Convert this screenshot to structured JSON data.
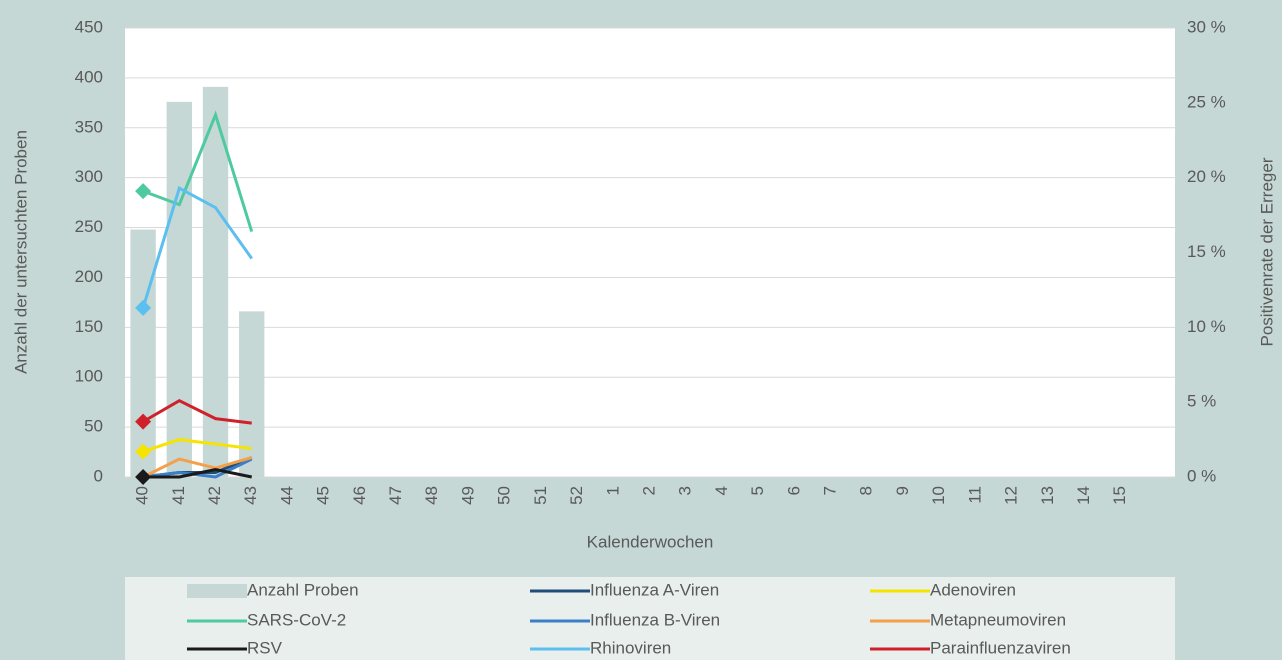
{
  "chart_data": {
    "type": "combo",
    "x_label": "Kalenderwochen",
    "y_label": "Anzahl der untersuchten Proben",
    "y2_label": "Positivenrate der Erreger",
    "categories": [
      "40",
      "41",
      "42",
      "43",
      "44",
      "45",
      "46",
      "47",
      "48",
      "49",
      "50",
      "51",
      "52",
      "1",
      "2",
      "3",
      "4",
      "5",
      "6",
      "7",
      "8",
      "9",
      "10",
      "11",
      "12",
      "13",
      "14",
      "15",
      null
    ],
    "ylim": [
      0,
      450
    ],
    "yticks": [
      0,
      50,
      100,
      150,
      200,
      250,
      300,
      350,
      400,
      450
    ],
    "y2lim": [
      0,
      30
    ],
    "y2ticks": [
      {
        "value": 0,
        "label": "0 %"
      },
      {
        "value": 5,
        "label": "5 %"
      },
      {
        "value": 10,
        "label": "10 %"
      },
      {
        "value": 15,
        "label": "15 %"
      },
      {
        "value": 20,
        "label": "20 %"
      },
      {
        "value": 25,
        "label": "25 %"
      },
      {
        "value": 30,
        "label": "30 %"
      }
    ],
    "grid": true,
    "legend": "bottom",
    "series": [
      {
        "name": "Anzahl Proben",
        "type": "bar",
        "color": "#c5d8d5",
        "values": [
          248,
          376,
          391,
          166,
          null,
          null,
          null,
          null,
          null,
          null,
          null,
          null,
          null,
          null,
          null,
          null,
          null,
          null,
          null,
          null,
          null,
          null,
          null,
          null,
          null,
          null,
          null,
          null,
          null
        ]
      },
      {
        "name": "Influenza A-Viren",
        "type": "line",
        "axis": "y2",
        "color": "#1f4e79",
        "values": [
          0,
          0.3,
          0.3,
          1.3,
          null,
          null,
          null,
          null,
          null,
          null,
          null,
          null,
          null,
          null,
          null,
          null,
          null,
          null,
          null,
          null,
          null,
          null,
          null,
          null,
          null,
          null,
          null,
          null,
          null
        ]
      },
      {
        "name": "Adenoviren",
        "type": "line",
        "axis": "y2",
        "color": "#f5e400",
        "marker": "diamond",
        "values": [
          1.7,
          2.5,
          2.2,
          1.9,
          null,
          null,
          null,
          null,
          null,
          null,
          null,
          null,
          null,
          null,
          null,
          null,
          null,
          null,
          null,
          null,
          null,
          null,
          null,
          null,
          null,
          null,
          null,
          null,
          null
        ]
      },
      {
        "name": "SARS-CoV-2",
        "type": "line",
        "axis": "y2",
        "color": "#4ec9a0",
        "marker": "diamond",
        "values": [
          19.1,
          18.2,
          24.2,
          16.4,
          null,
          null,
          null,
          null,
          null,
          null,
          null,
          null,
          null,
          null,
          null,
          null,
          null,
          null,
          null,
          null,
          null,
          null,
          null,
          null,
          null,
          null,
          null,
          null,
          null
        ]
      },
      {
        "name": "Influenza B-Viren",
        "type": "line",
        "axis": "y2",
        "color": "#3a7fc8",
        "values": [
          0,
          0.3,
          0,
          1.2,
          null,
          null,
          null,
          null,
          null,
          null,
          null,
          null,
          null,
          null,
          null,
          null,
          null,
          null,
          null,
          null,
          null,
          null,
          null,
          null,
          null,
          null,
          null,
          null,
          null
        ]
      },
      {
        "name": "Metapneumoviren",
        "type": "line",
        "axis": "y2",
        "color": "#f4a04a",
        "values": [
          0,
          1.2,
          0.6,
          1.3,
          null,
          null,
          null,
          null,
          null,
          null,
          null,
          null,
          null,
          null,
          null,
          null,
          null,
          null,
          null,
          null,
          null,
          null,
          null,
          null,
          null,
          null,
          null,
          null,
          null
        ]
      },
      {
        "name": "RSV",
        "type": "line",
        "axis": "y2",
        "color": "#1a1a1a",
        "marker": "diamond",
        "values": [
          0,
          0,
          0.5,
          0,
          null,
          null,
          null,
          null,
          null,
          null,
          null,
          null,
          null,
          null,
          null,
          null,
          null,
          null,
          null,
          null,
          null,
          null,
          null,
          null,
          null,
          null,
          null,
          null,
          null
        ]
      },
      {
        "name": "Rhinoviren",
        "type": "line",
        "axis": "y2",
        "color": "#5bbfef",
        "marker": "diamond",
        "values": [
          11.3,
          19.3,
          18.0,
          14.6,
          null,
          null,
          null,
          null,
          null,
          null,
          null,
          null,
          null,
          null,
          null,
          null,
          null,
          null,
          null,
          null,
          null,
          null,
          null,
          null,
          null,
          null,
          null,
          null,
          null
        ]
      },
      {
        "name": "Parainfluenzaviren",
        "type": "line",
        "axis": "y2",
        "color": "#d0202a",
        "marker": "diamond",
        "values": [
          3.7,
          5.1,
          3.9,
          3.6,
          null,
          null,
          null,
          null,
          null,
          null,
          null,
          null,
          null,
          null,
          null,
          null,
          null,
          null,
          null,
          null,
          null,
          null,
          null,
          null,
          null,
          null,
          null,
          null,
          null
        ]
      }
    ]
  }
}
